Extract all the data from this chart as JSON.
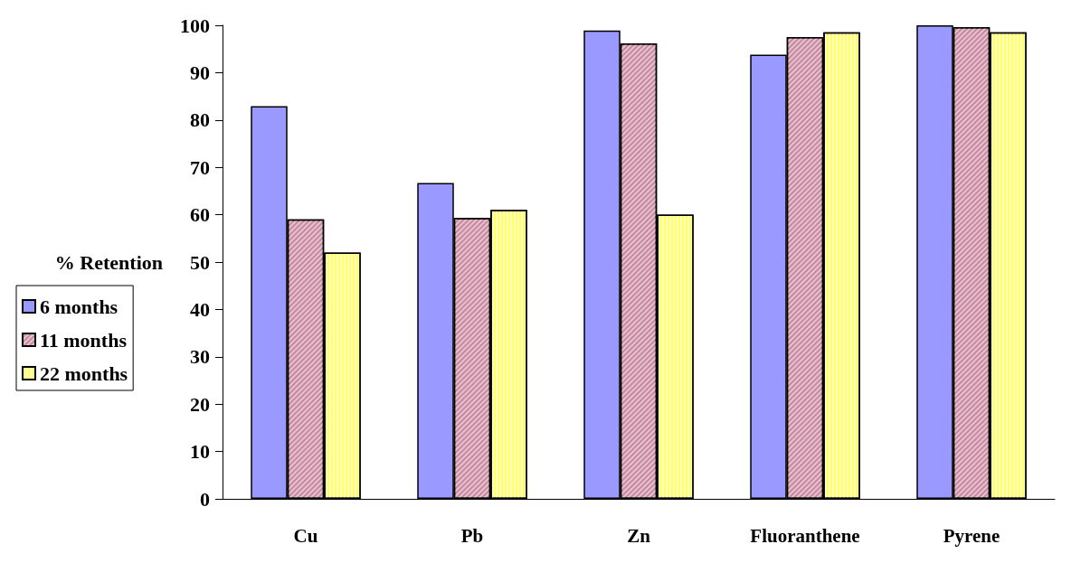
{
  "chart_data": {
    "type": "bar",
    "ylabel": "% Retention",
    "categories": [
      "Cu",
      "Pb",
      "Zn",
      "Fluoranthene",
      "Pyrene"
    ],
    "series": [
      {
        "name": "6 months",
        "color": "#9999ff",
        "values": [
          82.9,
          66.7,
          98.9,
          93.8,
          100
        ]
      },
      {
        "name": "11 months",
        "color": "#c9879f",
        "values": [
          59.0,
          59.3,
          96.2,
          97.5,
          99.6
        ]
      },
      {
        "name": "22 months",
        "color": "#ffff66",
        "values": [
          52.0,
          61.0,
          60.0,
          98.5,
          98.5
        ]
      }
    ],
    "ylim": [
      0,
      100
    ],
    "yticks": [
      0,
      10,
      20,
      30,
      40,
      50,
      60,
      70,
      80,
      90,
      100
    ],
    "grid": false,
    "legend": "left"
  }
}
